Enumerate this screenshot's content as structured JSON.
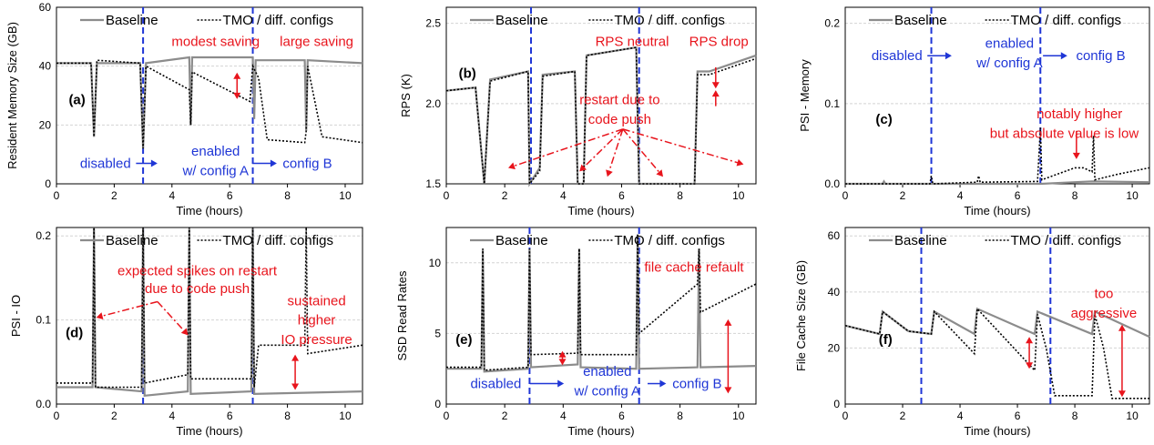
{
  "colors": {
    "baseline": "#8c8c8c",
    "tmo": "#000000",
    "annotation_red": "#e8141c",
    "annotation_blue": "#1f36d6",
    "grid": "#d4d4d4"
  },
  "legend": {
    "baseline": "Baseline",
    "tmo": "TMO / diff. configs"
  },
  "chart_data": [
    {
      "id": "a",
      "type": "line",
      "panel_label": "(a)",
      "xlabel": "Time (hours)",
      "ylabel": "Resident Memory Size (GB)",
      "xlim": [
        0,
        10.6
      ],
      "ylim": [
        0,
        60
      ],
      "xticks": [
        "0",
        "2",
        "4",
        "6",
        "8",
        "10"
      ],
      "yticks": [
        "0",
        "20",
        "40",
        "60"
      ],
      "config_changes": [
        3.0,
        6.8
      ],
      "series": [
        {
          "name": "Baseline",
          "x": [
            0,
            1.2,
            1.3,
            1.4,
            2.9,
            3.0,
            3.1,
            4.6,
            4.65,
            4.7,
            6.8,
            6.85,
            6.9,
            8.6,
            8.65,
            8.7,
            10.6
          ],
          "y": [
            41,
            41,
            16,
            41,
            41,
            12,
            41,
            43,
            20,
            43,
            43,
            22,
            42,
            42,
            18,
            42,
            41
          ]
        },
        {
          "name": "TMO / diff. configs",
          "x": [
            0,
            1.2,
            1.3,
            1.4,
            2.9,
            3.0,
            3.1,
            4.6,
            4.65,
            4.7,
            6.7,
            6.8,
            7.0,
            7.3,
            8.6,
            8.65,
            8.7,
            9.2,
            10.6
          ],
          "y": [
            41,
            41,
            16,
            42,
            41,
            12,
            40,
            32,
            20,
            38,
            28,
            40,
            36,
            15,
            14,
            18,
            40,
            16,
            14
          ]
        }
      ],
      "annotations": [
        {
          "text": "modest saving",
          "color": "red"
        },
        {
          "text": "large saving",
          "color": "red"
        },
        {
          "text": "disabled",
          "color": "blue"
        },
        {
          "text": "enabled",
          "color": "blue"
        },
        {
          "text": "w/ config A",
          "color": "blue"
        },
        {
          "text": "config B",
          "color": "blue"
        }
      ]
    },
    {
      "id": "b",
      "type": "line",
      "panel_label": "(b)",
      "xlabel": "Time (hours)",
      "ylabel": "RPS (K)",
      "xlim": [
        0,
        10.6
      ],
      "ylim": [
        1.5,
        2.6
      ],
      "xticks": [
        "0",
        "2",
        "4",
        "6",
        "8",
        "10"
      ],
      "yticks": [
        "1.5",
        "2.0",
        "2.5"
      ],
      "config_changes": [
        2.9,
        6.6
      ],
      "series": [
        {
          "name": "Baseline",
          "x": [
            0,
            1.0,
            1.3,
            1.5,
            2.8,
            2.85,
            3.2,
            3.3,
            4.4,
            4.5,
            4.7,
            4.8,
            6.5,
            6.6,
            8.5,
            8.6,
            9.0,
            10.6
          ],
          "y": [
            2.08,
            2.1,
            1.5,
            2.15,
            2.2,
            1.5,
            1.6,
            2.18,
            2.2,
            1.5,
            1.5,
            2.3,
            2.35,
            1.5,
            1.5,
            2.2,
            2.2,
            2.3
          ]
        },
        {
          "name": "TMO / diff. configs",
          "x": [
            0,
            1.0,
            1.3,
            1.5,
            2.8,
            2.85,
            3.2,
            3.3,
            4.4,
            4.5,
            4.7,
            4.8,
            6.5,
            6.6,
            8.5,
            8.6,
            9.0,
            10.6
          ],
          "y": [
            2.08,
            2.1,
            1.5,
            2.14,
            2.2,
            1.5,
            1.58,
            2.17,
            2.2,
            1.5,
            1.5,
            2.3,
            2.35,
            1.5,
            1.5,
            2.18,
            2.18,
            2.28
          ]
        }
      ],
      "annotations": [
        {
          "text": "RPS neutral",
          "color": "red"
        },
        {
          "text": "RPS drop",
          "color": "red"
        },
        {
          "text": "restart due to",
          "color": "red"
        },
        {
          "text": "code push",
          "color": "red"
        }
      ]
    },
    {
      "id": "c",
      "type": "line",
      "panel_label": "(c)",
      "xlabel": "Time (hours)",
      "ylabel": "PSI - Memory",
      "xlim": [
        0,
        10.6
      ],
      "ylim": [
        0,
        0.22
      ],
      "xticks": [
        "0",
        "2",
        "4",
        "6",
        "8",
        "10"
      ],
      "yticks": [
        "0.0",
        "0.1",
        "0.2"
      ],
      "config_changes": [
        3.0,
        6.8
      ],
      "series": [
        {
          "name": "Baseline",
          "x": [
            0,
            1.3,
            1.35,
            1.4,
            3.0,
            6.8,
            8.0,
            8.6,
            10.6
          ],
          "y": [
            0,
            0,
            0.003,
            0,
            0,
            0,
            0.002,
            0.003,
            0.002
          ]
        },
        {
          "name": "TMO / diff. configs",
          "x": [
            0,
            2.95,
            3.0,
            3.05,
            4.6,
            4.65,
            4.7,
            6.7,
            6.8,
            6.85,
            8.0,
            8.3,
            8.6,
            8.65,
            8.7,
            9.5,
            10.6
          ],
          "y": [
            0,
            0,
            0.01,
            0,
            0.002,
            0.01,
            0.002,
            0.003,
            0.07,
            0.005,
            0.02,
            0.02,
            0.015,
            0.06,
            0.005,
            0.012,
            0.02
          ]
        }
      ],
      "annotations": [
        {
          "text": "disabled",
          "color": "blue"
        },
        {
          "text": "enabled",
          "color": "blue"
        },
        {
          "text": "w/ config A",
          "color": "blue"
        },
        {
          "text": "config B",
          "color": "blue"
        },
        {
          "text": "notably higher",
          "color": "red"
        },
        {
          "text": "but absolute value is low",
          "color": "red"
        }
      ]
    },
    {
      "id": "d",
      "type": "line",
      "panel_label": "(d)",
      "xlabel": "Time (hours)",
      "ylabel": "PSI - IO",
      "xlim": [
        0,
        10.6
      ],
      "ylim": [
        0,
        0.21
      ],
      "xticks": [
        "0",
        "2",
        "4",
        "6",
        "8",
        "10"
      ],
      "yticks": [
        "0.0",
        "0.1",
        "0.2"
      ],
      "config_changes": [
        3.0,
        6.8
      ],
      "series": [
        {
          "name": "Baseline",
          "x": [
            0,
            1.25,
            1.3,
            1.35,
            2.95,
            3.0,
            3.05,
            4.55,
            4.6,
            4.65,
            6.75,
            6.8,
            6.85,
            10.6
          ],
          "y": [
            0.02,
            0.02,
            0.21,
            0.02,
            0.015,
            0.21,
            0.01,
            0.015,
            0.21,
            0.012,
            0.015,
            0.21,
            0.012,
            0.015
          ]
        },
        {
          "name": "TMO / diff. configs",
          "x": [
            0,
            1.25,
            1.3,
            1.35,
            2.95,
            3.0,
            3.05,
            4.55,
            4.6,
            4.65,
            6.75,
            6.8,
            6.85,
            7.0,
            8.6,
            8.65,
            8.7,
            10.6
          ],
          "y": [
            0.025,
            0.025,
            0.21,
            0.02,
            0.02,
            0.21,
            0.025,
            0.035,
            0.21,
            0.03,
            0.03,
            0.21,
            0.02,
            0.07,
            0.07,
            0.21,
            0.06,
            0.07
          ]
        }
      ],
      "annotations": [
        {
          "text": "expected spikes on restart",
          "color": "red"
        },
        {
          "text": "due to code push",
          "color": "red"
        },
        {
          "text": "sustained",
          "color": "red"
        },
        {
          "text": "higher",
          "color": "red"
        },
        {
          "text": "IO pressure",
          "color": "red"
        }
      ]
    },
    {
      "id": "e",
      "type": "line",
      "panel_label": "(e)",
      "xlabel": "Time (hours)",
      "ylabel": "SSD Read Rates",
      "xlim": [
        0,
        10.6
      ],
      "ylim": [
        0,
        12.5
      ],
      "xticks": [
        "0",
        "2",
        "4",
        "6",
        "8",
        "10"
      ],
      "yticks": [
        "0",
        "5",
        "10"
      ],
      "config_changes": [
        2.85,
        6.6
      ],
      "series": [
        {
          "name": "Baseline",
          "x": [
            0,
            1.2,
            1.25,
            1.3,
            2.8,
            2.85,
            2.9,
            4.5,
            4.55,
            4.6,
            6.5,
            6.55,
            6.6,
            8.6,
            8.65,
            8.7,
            10.6
          ],
          "y": [
            2.5,
            2.5,
            11,
            2.3,
            2.5,
            11,
            2.6,
            2.8,
            11,
            2.6,
            2.5,
            12,
            2.5,
            2.6,
            11,
            2.6,
            2.7
          ]
        },
        {
          "name": "TMO / diff. configs",
          "x": [
            0,
            1.2,
            1.25,
            1.3,
            2.8,
            2.85,
            2.9,
            4.5,
            4.55,
            4.6,
            6.5,
            6.55,
            6.6,
            8.6,
            8.65,
            8.7,
            10.6
          ],
          "y": [
            2.6,
            2.6,
            11,
            2.4,
            2.6,
            11,
            3.5,
            3.6,
            11,
            3.5,
            3.5,
            12,
            5.0,
            8.5,
            11,
            6.5,
            8.5
          ]
        }
      ],
      "annotations": [
        {
          "text": "file cache refault",
          "color": "red"
        },
        {
          "text": "disabled",
          "color": "blue"
        },
        {
          "text": "enabled",
          "color": "blue"
        },
        {
          "text": "w/ config A",
          "color": "blue"
        },
        {
          "text": "config B",
          "color": "blue"
        }
      ]
    },
    {
      "id": "f",
      "type": "line",
      "panel_label": "(f)",
      "xlabel": "Time (hours)",
      "ylabel": "File Cache Size (GB)",
      "xlim": [
        0,
        10.6
      ],
      "ylim": [
        0,
        63
      ],
      "xticks": [
        "0",
        "2",
        "4",
        "6",
        "8",
        "10"
      ],
      "yticks": [
        "0",
        "20",
        "40",
        "60"
      ],
      "config_changes": [
        2.65,
        7.15
      ],
      "series": [
        {
          "name": "Baseline",
          "x": [
            0,
            1.2,
            1.3,
            2.2,
            3.0,
            3.1,
            4.5,
            4.6,
            6.6,
            6.7,
            8.6,
            8.7,
            10.6
          ],
          "y": [
            28,
            25,
            33,
            26,
            25,
            33,
            25,
            34,
            25,
            33,
            25,
            33,
            24
          ]
        },
        {
          "name": "TMO / diff. configs",
          "x": [
            0,
            1.2,
            1.3,
            2.2,
            3.0,
            3.1,
            4.5,
            4.6,
            6.6,
            6.7,
            7.0,
            7.3,
            8.6,
            8.7,
            9.0,
            9.3,
            10.6
          ],
          "y": [
            28,
            25,
            33,
            26,
            25,
            33,
            18,
            34,
            12,
            32,
            20,
            3,
            3,
            32,
            20,
            2,
            2
          ]
        }
      ],
      "annotations": [
        {
          "text": "too",
          "color": "red"
        },
        {
          "text": "aggressive",
          "color": "red"
        }
      ]
    }
  ]
}
